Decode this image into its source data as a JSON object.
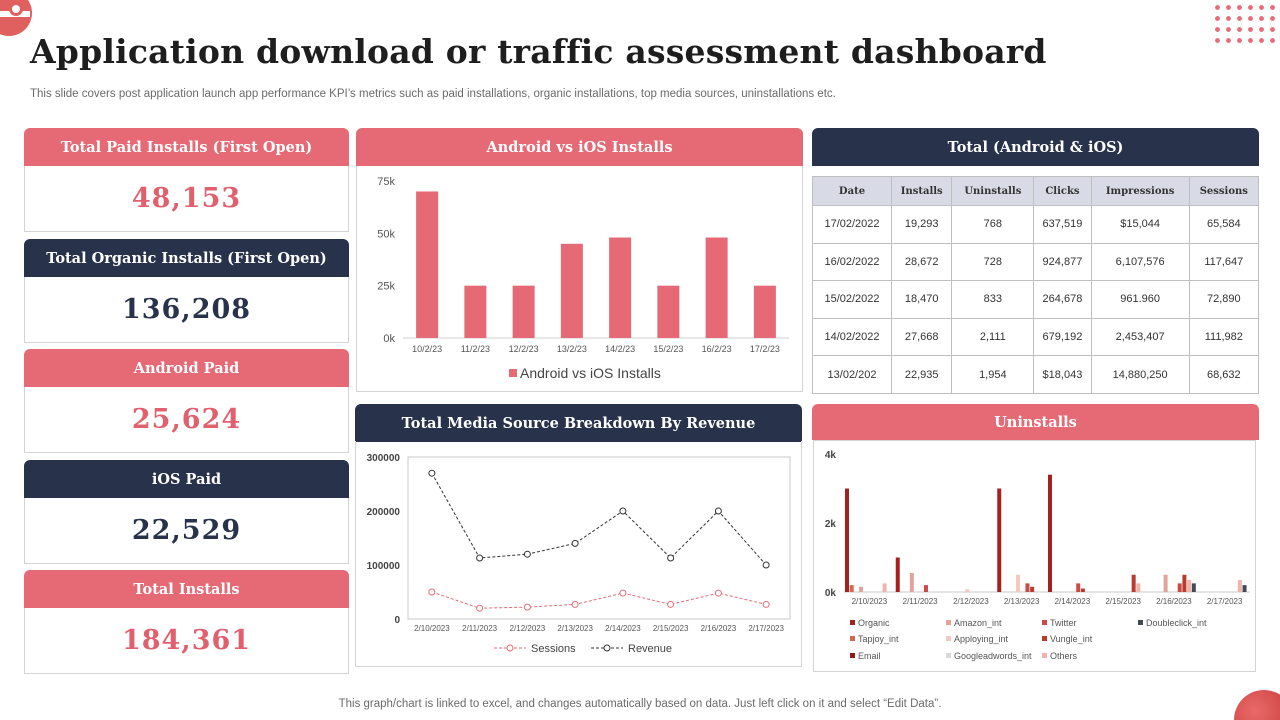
{
  "page": {
    "title": "Application download or traffic assessment dashboard",
    "subtitle": "This slide covers post application launch app performance KPI’s metrics such as paid installations, organic installations, top media sources, uninstallations etc.",
    "footer": "This graph/chart is linked to excel,  and changes automatically based on data. Just left click on it and select “Edit Data”."
  },
  "kpis": [
    {
      "label": "Total Paid Installs (First Open)",
      "value": "48,153"
    },
    {
      "label": "Total Organic Installs (First Open)",
      "value": "136,208"
    },
    {
      "label": "Android Paid",
      "value": "25,624"
    },
    {
      "label": "iOS Paid",
      "value": "22,529"
    },
    {
      "label": "Total Installs",
      "value": "184,361"
    }
  ],
  "panels": {
    "bar_title": "Android vs iOS Installs",
    "table_title": "Total (Android & iOS)",
    "line_title": "Total Media Source Breakdown By Revenue",
    "uninstalls_title": "Uninstalls"
  },
  "table": {
    "headers": [
      "Date",
      "Installs",
      "Uninstalls",
      "Clicks",
      "Impressions",
      "Sessions"
    ],
    "rows": [
      [
        "17/02/2022",
        "19,293",
        "768",
        "637,519",
        "$15,044",
        "65,584"
      ],
      [
        "16/02/2022",
        "28,672",
        "728",
        "924,877",
        "6,107,576",
        "117,647"
      ],
      [
        "15/02/2022",
        "18,470",
        "833",
        "264,678",
        "961.960",
        "72,890"
      ],
      [
        "14/02/2022",
        "27,668",
        "2,111",
        "679,192",
        "2,453,407",
        "111,982"
      ],
      [
        "13/02/202",
        "22,935",
        "1,954",
        "$18,043",
        "14,880,250",
        "68,632"
      ]
    ]
  },
  "colors": {
    "pink": "#e56a75",
    "navy": "#28324b",
    "bar": "#e56a75",
    "sessions": "#e56a75",
    "revenue": "#333333"
  },
  "chart_data": [
    {
      "type": "bar",
      "title": "Android vs iOS Installs",
      "categories": [
        "10/2/23",
        "11/2/23",
        "12/2/23",
        "13/2/23",
        "14/2/23",
        "15/2/23",
        "16/2/23",
        "17/2/23"
      ],
      "values": [
        70000,
        25000,
        25000,
        45000,
        48000,
        25000,
        48000,
        25000
      ],
      "ylim": [
        0,
        75000
      ],
      "yticks": [
        "0k",
        "25k",
        "50k",
        "75k"
      ],
      "ytick_values": [
        0,
        25000,
        50000,
        75000
      ],
      "legend": [
        "Android vs iOS Installs"
      ],
      "legend_position": "bottom"
    },
    {
      "type": "line",
      "title": "Total Media Source Breakdown By Revenue",
      "categories": [
        "2/10/2023",
        "2/11/2023",
        "2/12/2023",
        "2/13/2023",
        "2/14/2023",
        "2/15/2023",
        "2/16/2023",
        "2/17/2023"
      ],
      "series": [
        {
          "name": "Sessions",
          "values": [
            50000,
            20000,
            22000,
            27000,
            48000,
            27000,
            48000,
            27000
          ]
        },
        {
          "name": "Revenue",
          "values": [
            270000,
            113000,
            120000,
            140000,
            200000,
            113000,
            200000,
            100000
          ]
        }
      ],
      "ylim": [
        0,
        300000
      ],
      "yticks": [
        "0",
        "100000",
        "200000",
        "300000"
      ],
      "ytick_values": [
        0,
        100000,
        200000,
        300000
      ],
      "legend_position": "bottom"
    },
    {
      "type": "bar",
      "title": "Uninstalls",
      "categories": [
        "2/10/2023",
        "2/11/2023",
        "2/12/2023",
        "2/13/2023",
        "2/14/2023",
        "2/15/2023",
        "2/16/2023",
        "2/17/2023"
      ],
      "series": [
        {
          "name": "Organic",
          "color": "#a4211f",
          "values": [
            3000,
            1000,
            0,
            3000,
            3400,
            0,
            0,
            0
          ]
        },
        {
          "name": "Tapjoy_int",
          "color": "#d3684e",
          "values": [
            200,
            0,
            0,
            0,
            0,
            0,
            0,
            0
          ]
        },
        {
          "name": "Email",
          "color": "#8b1a18",
          "values": [
            0,
            0,
            0,
            0,
            0,
            0,
            0,
            0
          ]
        },
        {
          "name": "Amazon_int",
          "color": "#e3a39a",
          "values": [
            150,
            550,
            0,
            0,
            0,
            0,
            500,
            0
          ]
        },
        {
          "name": "Apploying_int",
          "color": "#f4c7c0",
          "values": [
            0,
            0,
            80,
            500,
            0,
            0,
            0,
            0
          ]
        },
        {
          "name": "Googleadwords_int",
          "color": "#d9d9d9",
          "values": [
            0,
            0,
            0,
            0,
            0,
            0,
            0,
            0
          ]
        },
        {
          "name": "Twitter",
          "color": "#c94a47",
          "values": [
            0,
            200,
            0,
            250,
            250,
            0,
            250,
            0
          ]
        },
        {
          "name": "Vungle_int",
          "color": "#b83b30",
          "values": [
            0,
            0,
            0,
            150,
            100,
            500,
            500,
            0
          ]
        },
        {
          "name": "Others",
          "color": "#f2b3ad",
          "values": [
            250,
            0,
            0,
            0,
            0,
            250,
            350,
            350
          ]
        },
        {
          "name": "Doubleclick_int",
          "color": "#444a55",
          "values": [
            0,
            0,
            0,
            0,
            0,
            0,
            250,
            200
          ]
        }
      ],
      "ylim": [
        0,
        4000
      ],
      "yticks": [
        "0k",
        "2k",
        "4k"
      ],
      "ytick_values": [
        0,
        2000,
        4000
      ],
      "legend_position": "bottom"
    }
  ]
}
